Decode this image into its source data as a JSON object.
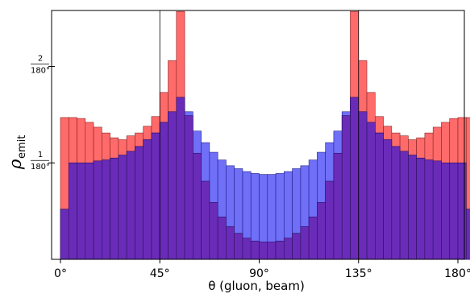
{
  "chart_data": {
    "type": "bar",
    "title": "",
    "xlabel": "θ (gluon, beam)",
    "ylabel_main": "ρ",
    "ylabel_sub": "emit",
    "xlim": [
      0,
      180
    ],
    "ylim": [
      0,
      2.58
    ],
    "bin_width": 3.75,
    "xticks": [
      0,
      45,
      90,
      135,
      180
    ],
    "xtick_labels": [
      "0°",
      "45°",
      "90°",
      "135°",
      "180°"
    ],
    "yticks": [
      1,
      2
    ],
    "ytick_labels": [
      {
        "num": "1",
        "den": "180°"
      },
      {
        "num": "2",
        "den": "180°"
      }
    ],
    "reference_lines_x": [
      45,
      135
    ],
    "series": [
      {
        "color": "#ff6b6b",
        "edge": "#8a1f1f",
        "values": [
          1.47,
          1.47,
          1.46,
          1.42,
          1.37,
          1.31,
          1.26,
          1.24,
          1.28,
          1.31,
          1.38,
          1.48,
          1.73,
          2.06,
          2.57,
          1.49,
          1.1,
          0.81,
          0.59,
          0.44,
          0.34,
          0.27,
          0.22,
          0.19,
          0.18,
          0.18,
          0.19,
          0.22,
          0.27,
          0.34,
          0.44,
          0.59,
          0.81,
          1.1,
          1.49,
          2.57,
          2.06,
          1.73,
          1.48,
          1.38,
          1.31,
          1.28,
          1.24,
          1.26,
          1.31,
          1.37,
          1.42,
          1.46,
          1.47,
          1.47
        ]
      },
      {
        "color": "#6f6ff7",
        "edge": "#20208a",
        "values": [
          0.52,
          1.0,
          1.0,
          1.0,
          1.02,
          1.03,
          1.05,
          1.08,
          1.12,
          1.17,
          1.24,
          1.31,
          1.42,
          1.53,
          1.68,
          1.53,
          1.33,
          1.21,
          1.11,
          1.03,
          0.97,
          0.94,
          0.91,
          0.89,
          0.88,
          0.88,
          0.89,
          0.91,
          0.94,
          0.97,
          1.03,
          1.11,
          1.21,
          1.33,
          1.53,
          1.68,
          1.53,
          1.42,
          1.31,
          1.24,
          1.17,
          1.12,
          1.08,
          1.05,
          1.03,
          1.02,
          1.0,
          1.0,
          1.0,
          0.52
        ]
      }
    ]
  }
}
